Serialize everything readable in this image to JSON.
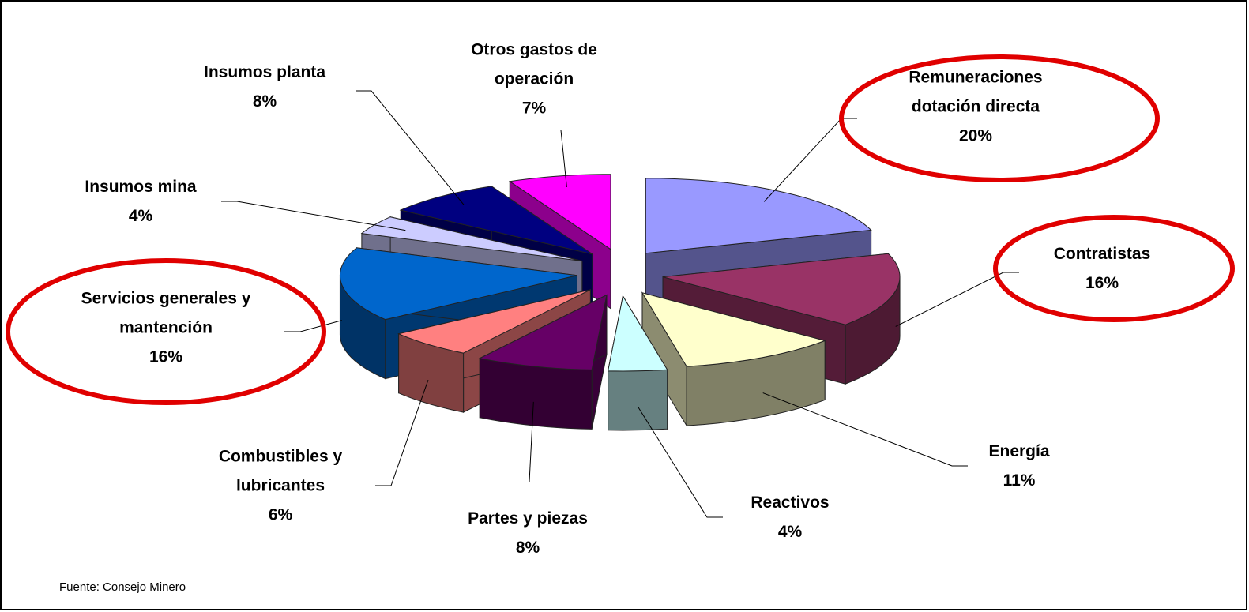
{
  "chart_data": {
    "type": "pie3d",
    "categories": [
      "Remuneraciones dotación directa",
      "Contratistas",
      "Energía",
      "Reactivos",
      "Partes y piezas",
      "Combustibles y lubricantes",
      "Servicios generales y mantención",
      "Insumos mina",
      "Insumos planta",
      "Otros gastos de operación"
    ],
    "values": [
      20,
      16,
      11,
      4,
      8,
      6,
      16,
      4,
      8,
      7
    ],
    "value_labels": [
      "20%",
      "16%",
      "11%",
      "4%",
      "8%",
      "6%",
      "16%",
      "4%",
      "8%",
      "7%"
    ],
    "colors": [
      "#9999ff",
      "#993366",
      "#ffffcc",
      "#ccffff",
      "#660066",
      "#ff8080",
      "#0066cc",
      "#ccccff",
      "#000080",
      "#ff00ff"
    ],
    "source": "Fuente: Consejo Minero"
  }
}
